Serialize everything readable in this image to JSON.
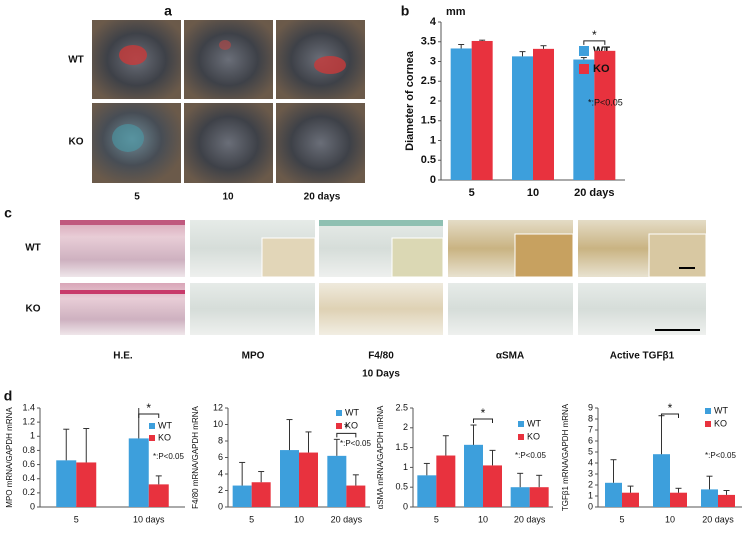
{
  "panel_labels": [
    "a",
    "b",
    "c",
    "d"
  ],
  "panel_a": {
    "row_labels": [
      "WT",
      "KO"
    ],
    "col_labels": [
      "5",
      "10",
      "20 days"
    ]
  },
  "panel_c": {
    "row_labels": [
      "WT",
      "KO"
    ],
    "col_labels": [
      "H.E.",
      "MPO",
      "F4/80",
      "αSMA",
      "Active TGFβ1"
    ],
    "subtitle": "10 Days"
  },
  "chart_data": [
    {
      "type": "bar",
      "y_unit": "mm",
      "y_label": "Diameter of cornea",
      "categories": [
        "5",
        "10",
        "20 days"
      ],
      "series": [
        {
          "name": "WT",
          "color": "#3d9fdc",
          "values": [
            3.33,
            3.13,
            3.05
          ],
          "errors": [
            0.1,
            0.12,
            0.05
          ]
        },
        {
          "name": "KO",
          "color": "#e8323e",
          "values": [
            3.52,
            3.32,
            3.27
          ],
          "errors": [
            0.02,
            0.08,
            0.1
          ]
        }
      ],
      "ylim": [
        0,
        4
      ],
      "yticks": [
        0,
        0.5,
        1,
        1.5,
        2,
        2.5,
        3,
        3.5,
        4
      ],
      "legend": "right",
      "note": "*:P<0.05",
      "significance": [
        {
          "label": "*",
          "category_index": 2
        }
      ]
    },
    {
      "type": "bar",
      "y_label": "MPO mRNA/GAPDH mRNA",
      "categories": [
        "5",
        "10 days"
      ],
      "series": [
        {
          "name": "WT",
          "color": "#3d9fdc",
          "values": [
            0.66,
            0.97
          ],
          "errors": [
            0.44,
            0.58
          ]
        },
        {
          "name": "KO",
          "color": "#e8323e",
          "values": [
            0.63,
            0.32
          ],
          "errors": [
            0.48,
            0.12
          ]
        }
      ],
      "ylim": [
        0,
        1.4
      ],
      "yticks": [
        0,
        0.2,
        0.4,
        0.6,
        0.8,
        1,
        1.2,
        1.4
      ],
      "legend": "upper right",
      "note": "*:P<0.05",
      "significance": [
        {
          "label": "*",
          "category_index": 1
        }
      ]
    },
    {
      "type": "bar",
      "y_label": "F4/80 mRNA/GAPDH mRNA",
      "categories": [
        "5",
        "10",
        "20 days"
      ],
      "series": [
        {
          "name": "WT",
          "color": "#3d9fdc",
          "values": [
            2.6,
            6.9,
            6.2
          ],
          "errors": [
            2.8,
            3.7,
            2.0
          ]
        },
        {
          "name": "KO",
          "color": "#e8323e",
          "values": [
            3.0,
            6.6,
            2.6
          ],
          "errors": [
            1.3,
            2.5,
            1.3
          ]
        }
      ],
      "ylim": [
        0,
        12
      ],
      "yticks": [
        0,
        2,
        4,
        6,
        8,
        10,
        12
      ],
      "legend": "upper right",
      "note": "*:P<0.05",
      "significance": [
        {
          "label": "*",
          "category_index": 2
        }
      ]
    },
    {
      "type": "bar",
      "y_label": "αSMA mRNA/GAPDH mRNA",
      "categories": [
        "5",
        "10",
        "20 days"
      ],
      "series": [
        {
          "name": "WT",
          "color": "#3d9fdc",
          "values": [
            0.8,
            1.57,
            0.5
          ],
          "errors": [
            0.3,
            0.5,
            0.35
          ]
        },
        {
          "name": "KO",
          "color": "#e8323e",
          "values": [
            1.3,
            1.05,
            0.5
          ],
          "errors": [
            0.5,
            0.38,
            0.3
          ]
        }
      ],
      "ylim": [
        0,
        2.5
      ],
      "yticks": [
        0,
        0.5,
        1,
        1.5,
        2,
        2.5
      ],
      "legend": "upper right",
      "note": "*:P<0.05",
      "significance": [
        {
          "label": "*",
          "category_index": 1
        }
      ]
    },
    {
      "type": "bar",
      "y_label": "TGFβ1 mRNA/GAPDH mRNA",
      "categories": [
        "5",
        "10",
        "20 days"
      ],
      "series": [
        {
          "name": "WT",
          "color": "#3d9fdc",
          "values": [
            2.2,
            4.8,
            1.6
          ],
          "errors": [
            2.1,
            3.5,
            1.2
          ]
        },
        {
          "name": "KO",
          "color": "#e8323e",
          "values": [
            1.3,
            1.3,
            1.1
          ],
          "errors": [
            0.6,
            0.4,
            0.4
          ]
        }
      ],
      "ylim": [
        0,
        9
      ],
      "yticks": [
        0,
        1,
        2,
        3,
        4,
        5,
        6,
        7,
        8,
        9
      ],
      "legend": "upper right",
      "note": "*:P<0.05",
      "significance": [
        {
          "label": "*",
          "category_index": 1
        }
      ]
    }
  ]
}
